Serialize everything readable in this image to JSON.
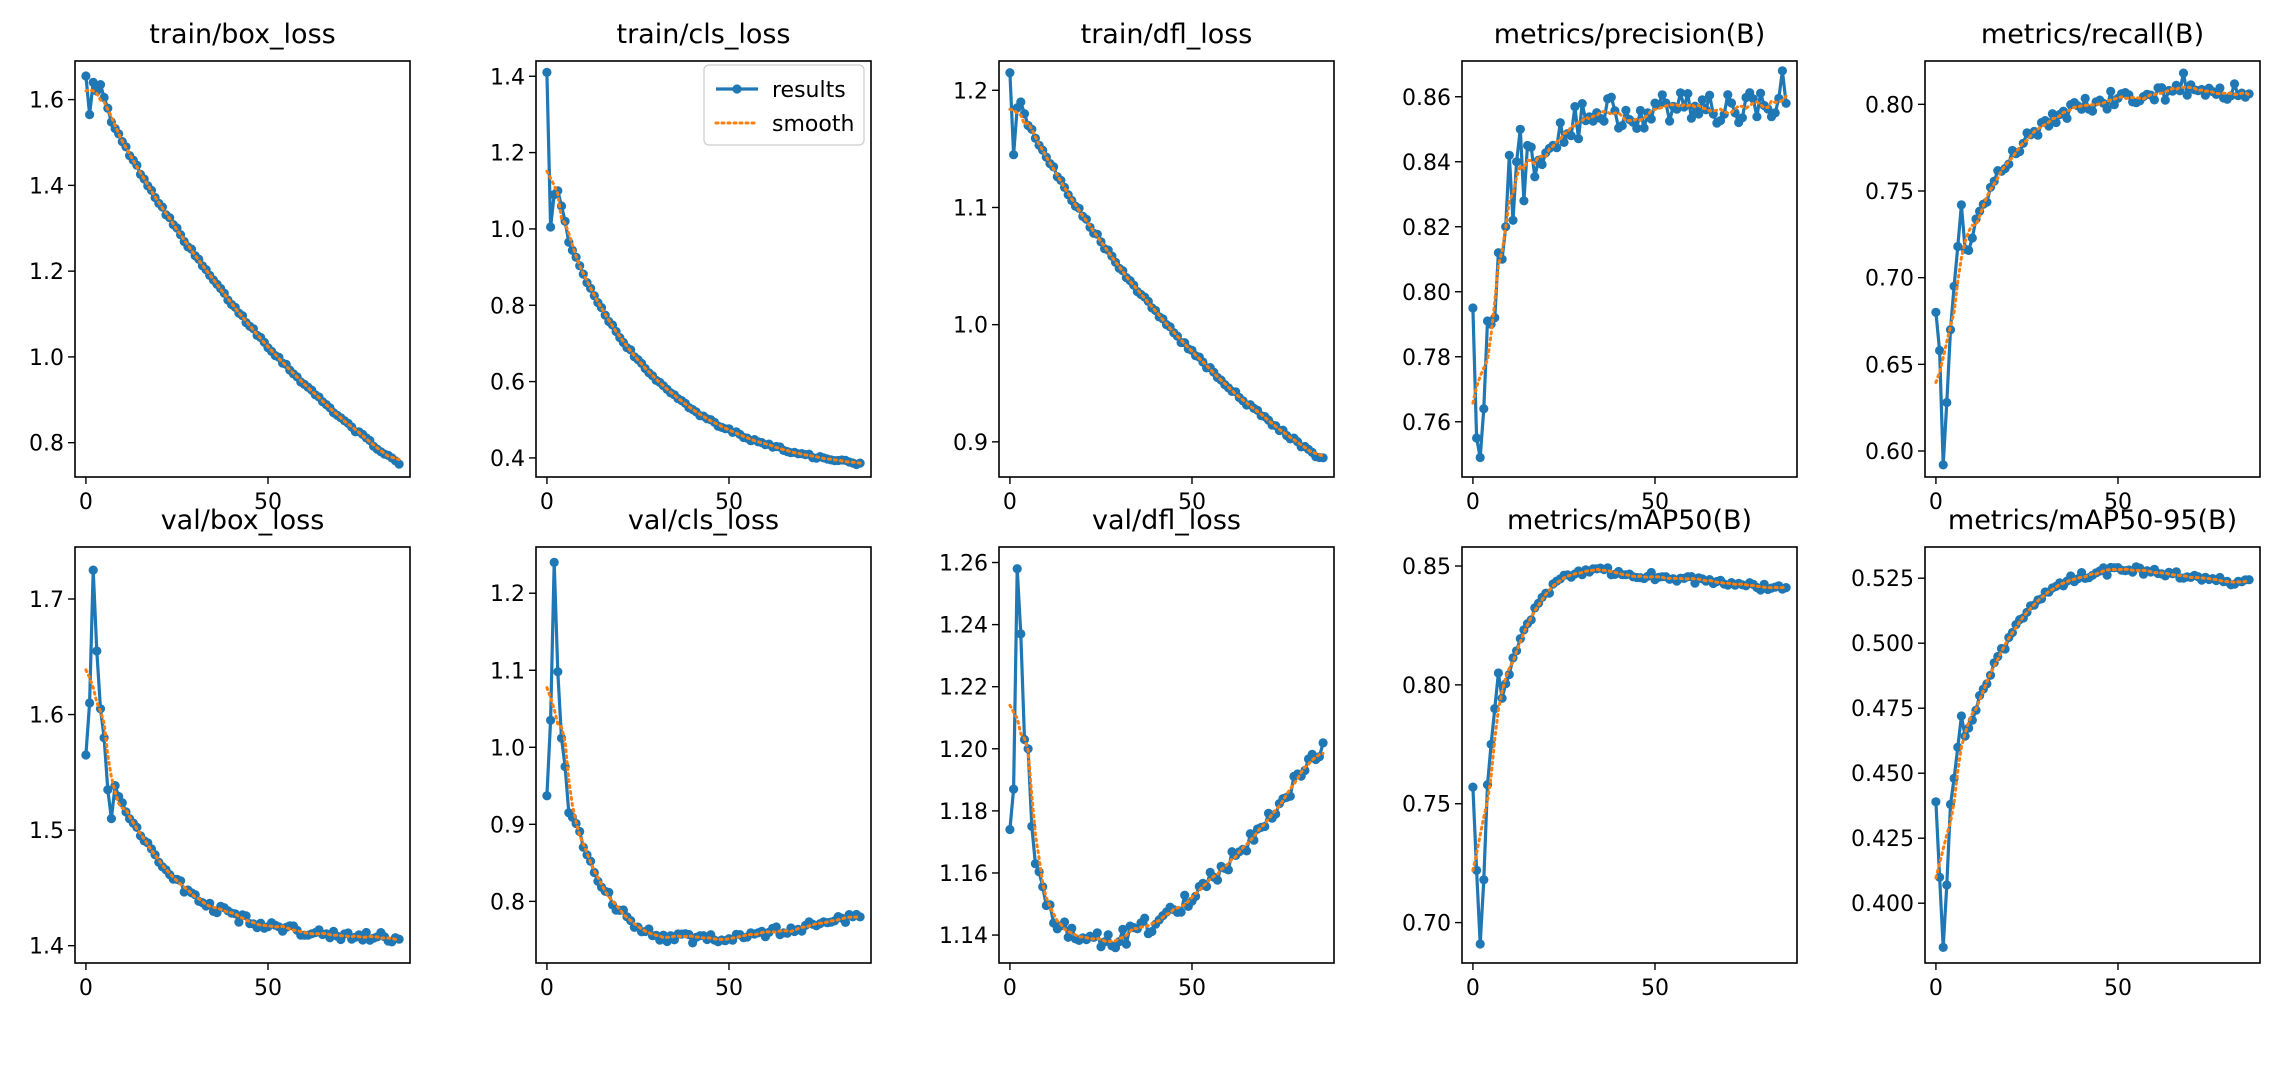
{
  "colors": {
    "results": "#1f77b4",
    "smooth": "#ff7f0e",
    "axis": "#000000"
  },
  "legend": {
    "results": "results",
    "smooth": "smooth"
  },
  "chart_data": [
    {
      "type": "line",
      "title": "train/box_loss",
      "xlim": [
        -3,
        89
      ],
      "ylim": [
        0.72,
        1.69
      ],
      "xticks": [
        0,
        50
      ],
      "xtick_labels": [
        "0",
        "50"
      ],
      "yticks": [
        0.8,
        1.0,
        1.2,
        1.4,
        1.6
      ],
      "ytick_labels": [
        "0.8",
        "1.0",
        "1.2",
        "1.4",
        "1.6"
      ],
      "shape": "decay",
      "start": 1.66,
      "end": 0.75,
      "k": 1.0,
      "anchors": [
        [
          0,
          1.655
        ],
        [
          1,
          1.565
        ],
        [
          2,
          1.64
        ],
        [
          3,
          1.62
        ],
        [
          4,
          1.635
        ],
        [
          5,
          1.605
        ],
        [
          6,
          1.58
        ]
      ],
      "noise": 0.004
    },
    {
      "type": "line",
      "title": "train/cls_loss",
      "xlim": [
        -3,
        89
      ],
      "ylim": [
        0.35,
        1.44
      ],
      "xticks": [
        0,
        50
      ],
      "xtick_labels": [
        "0",
        "50"
      ],
      "yticks": [
        0.4,
        0.6,
        0.8,
        1.0,
        1.2,
        1.4
      ],
      "ytick_labels": [
        "0.4",
        "0.6",
        "0.8",
        "1.0",
        "1.2",
        "1.4"
      ],
      "shape": "decay",
      "start": 1.12,
      "end": 0.385,
      "k": 3.2,
      "anchors": [
        [
          0,
          1.41
        ],
        [
          1,
          1.005
        ],
        [
          2,
          1.09
        ],
        [
          3,
          1.1
        ],
        [
          4,
          1.06
        ],
        [
          5,
          1.02
        ]
      ],
      "noise": 0.004,
      "legend": true
    },
    {
      "type": "line",
      "title": "train/dfl_loss",
      "xlim": [
        -3,
        89
      ],
      "ylim": [
        0.87,
        1.225
      ],
      "xticks": [
        0,
        50
      ],
      "xtick_labels": [
        "0",
        "50"
      ],
      "yticks": [
        0.9,
        1.0,
        1.1,
        1.2
      ],
      "ytick_labels": [
        "0.9",
        "1.0",
        "1.1",
        "1.2"
      ],
      "shape": "decay",
      "start": 1.2,
      "end": 0.885,
      "k": 1.1,
      "anchors": [
        [
          0,
          1.215
        ],
        [
          1,
          1.145
        ],
        [
          2,
          1.185
        ],
        [
          3,
          1.19
        ],
        [
          4,
          1.18
        ],
        [
          5,
          1.17
        ]
      ],
      "noise": 0.002
    },
    {
      "type": "line",
      "title": "metrics/precision(B)",
      "xlim": [
        -3,
        89
      ],
      "ylim": [
        0.743,
        0.871
      ],
      "xticks": [
        0,
        50
      ],
      "xtick_labels": [
        "0",
        "50"
      ],
      "yticks": [
        0.76,
        0.78,
        0.8,
        0.82,
        0.84,
        0.86
      ],
      "ytick_labels": [
        "0.76",
        "0.78",
        "0.80",
        "0.82",
        "0.84",
        "0.86"
      ],
      "shape": "rise",
      "start": 0.78,
      "end": 0.857,
      "k": 8,
      "anchors": [
        [
          0,
          0.795
        ],
        [
          1,
          0.755
        ],
        [
          2,
          0.749
        ],
        [
          3,
          0.764
        ],
        [
          4,
          0.791
        ],
        [
          5,
          0.79
        ],
        [
          6,
          0.792
        ],
        [
          7,
          0.812
        ],
        [
          8,
          0.81
        ],
        [
          9,
          0.82
        ],
        [
          10,
          0.842
        ],
        [
          11,
          0.822
        ],
        [
          12,
          0.84
        ],
        [
          13,
          0.85
        ],
        [
          14,
          0.828
        ],
        [
          15,
          0.845
        ],
        [
          85,
          0.868
        ],
        [
          86,
          0.858
        ]
      ],
      "noise": 0.006
    },
    {
      "type": "line",
      "title": "metrics/recall(B)",
      "xlim": [
        -3,
        89
      ],
      "ylim": [
        0.585,
        0.825
      ],
      "xticks": [
        0,
        50
      ],
      "xtick_labels": [
        "0",
        "50"
      ],
      "yticks": [
        0.6,
        0.65,
        0.7,
        0.75,
        0.8
      ],
      "ytick_labels": [
        "0.60",
        "0.65",
        "0.70",
        "0.75",
        "0.80"
      ],
      "shape": "rise",
      "start": 0.64,
      "end": 0.808,
      "k": 6,
      "anchors": [
        [
          0,
          0.68
        ],
        [
          1,
          0.658
        ],
        [
          2,
          0.592
        ],
        [
          3,
          0.628
        ],
        [
          4,
          0.67
        ],
        [
          5,
          0.695
        ],
        [
          6,
          0.718
        ],
        [
          7,
          0.742
        ],
        [
          68,
          0.818
        ],
        [
          86,
          0.806
        ]
      ],
      "noise": 0.005
    },
    {
      "type": "line",
      "title": "val/box_loss",
      "xlim": [
        -3,
        89
      ],
      "ylim": [
        1.385,
        1.745
      ],
      "xticks": [
        0,
        50
      ],
      "xtick_labels": [
        "0",
        "50"
      ],
      "yticks": [
        1.4,
        1.5,
        1.6,
        1.7
      ],
      "ytick_labels": [
        "1.4",
        "1.5",
        "1.6",
        "1.7"
      ],
      "shape": "decay",
      "start": 1.62,
      "end": 1.407,
      "k": 5,
      "anchors": [
        [
          0,
          1.565
        ],
        [
          1,
          1.61
        ],
        [
          2,
          1.725
        ],
        [
          3,
          1.655
        ],
        [
          4,
          1.605
        ],
        [
          5,
          1.58
        ],
        [
          6,
          1.535
        ],
        [
          7,
          1.51
        ]
      ],
      "noise": 0.004
    },
    {
      "type": "line",
      "title": "val/cls_loss",
      "xlim": [
        -3,
        89
      ],
      "ylim": [
        0.72,
        1.26
      ],
      "xticks": [
        0,
        50
      ],
      "xtick_labels": [
        "0",
        "50"
      ],
      "yticks": [
        0.8,
        0.9,
        1.0,
        1.1,
        1.2
      ],
      "ytick_labels": [
        "0.8",
        "0.9",
        "1.0",
        "1.1",
        "1.2"
      ],
      "shape": "valley",
      "start": 1.04,
      "min": 0.752,
      "minAt": 40,
      "end": 0.78,
      "anchors": [
        [
          0,
          0.937
        ],
        [
          1,
          1.035
        ],
        [
          2,
          1.24
        ],
        [
          3,
          1.098
        ],
        [
          4,
          1.012
        ],
        [
          5,
          0.975
        ],
        [
          6,
          0.915
        ]
      ],
      "noise": 0.006
    },
    {
      "type": "line",
      "title": "val/dfl_loss",
      "xlim": [
        -3,
        89
      ],
      "ylim": [
        1.131,
        1.265
      ],
      "xticks": [
        0,
        50
      ],
      "xtick_labels": [
        "0",
        "50"
      ],
      "yticks": [
        1.14,
        1.16,
        1.18,
        1.2,
        1.22,
        1.24,
        1.26
      ],
      "ytick_labels": [
        "1.14",
        "1.16",
        "1.18",
        "1.20",
        "1.22",
        "1.24",
        "1.26"
      ],
      "shape": "valley",
      "start": 1.2,
      "min": 1.138,
      "minAt": 25,
      "end": 1.201,
      "anchors": [
        [
          0,
          1.174
        ],
        [
          1,
          1.187
        ],
        [
          2,
          1.258
        ],
        [
          3,
          1.237
        ],
        [
          4,
          1.203
        ],
        [
          5,
          1.2
        ],
        [
          6,
          1.175
        ],
        [
          7,
          1.163
        ]
      ],
      "noise": 0.003
    },
    {
      "type": "line",
      "title": "metrics/mAP50(B)",
      "xlim": [
        -3,
        89
      ],
      "ylim": [
        0.683,
        0.858
      ],
      "xticks": [
        0,
        50
      ],
      "xtick_labels": [
        "0",
        "50"
      ],
      "yticks": [
        0.7,
        0.75,
        0.8,
        0.85
      ],
      "ytick_labels": [
        "0.70",
        "0.75",
        "0.80",
        "0.85"
      ],
      "shape": "risefall",
      "start": 0.735,
      "peak": 0.848,
      "peakAt": 36,
      "end": 0.84,
      "anchors": [
        [
          0,
          0.757
        ],
        [
          1,
          0.722
        ],
        [
          2,
          0.691
        ],
        [
          3,
          0.718
        ],
        [
          4,
          0.758
        ],
        [
          5,
          0.775
        ],
        [
          6,
          0.79
        ],
        [
          7,
          0.805
        ]
      ],
      "noise": 0.0015
    },
    {
      "type": "line",
      "title": "metrics/mAP50-95(B)",
      "xlim": [
        -3,
        89
      ],
      "ylim": [
        0.377,
        0.537
      ],
      "xticks": [
        0,
        50
      ],
      "xtick_labels": [
        "0",
        "50"
      ],
      "yticks": [
        0.4,
        0.425,
        0.45,
        0.475,
        0.5,
        0.525
      ],
      "ytick_labels": [
        "0.400",
        "0.425",
        "0.450",
        "0.475",
        "0.500",
        "0.525"
      ],
      "shape": "risefall",
      "start": 0.425,
      "peak": 0.528,
      "peakAt": 55,
      "end": 0.523,
      "anchors": [
        [
          0,
          0.439
        ],
        [
          1,
          0.41
        ],
        [
          2,
          0.383
        ],
        [
          3,
          0.407
        ],
        [
          4,
          0.438
        ],
        [
          5,
          0.448
        ],
        [
          6,
          0.46
        ],
        [
          7,
          0.472
        ]
      ],
      "noise": 0.0015
    }
  ]
}
